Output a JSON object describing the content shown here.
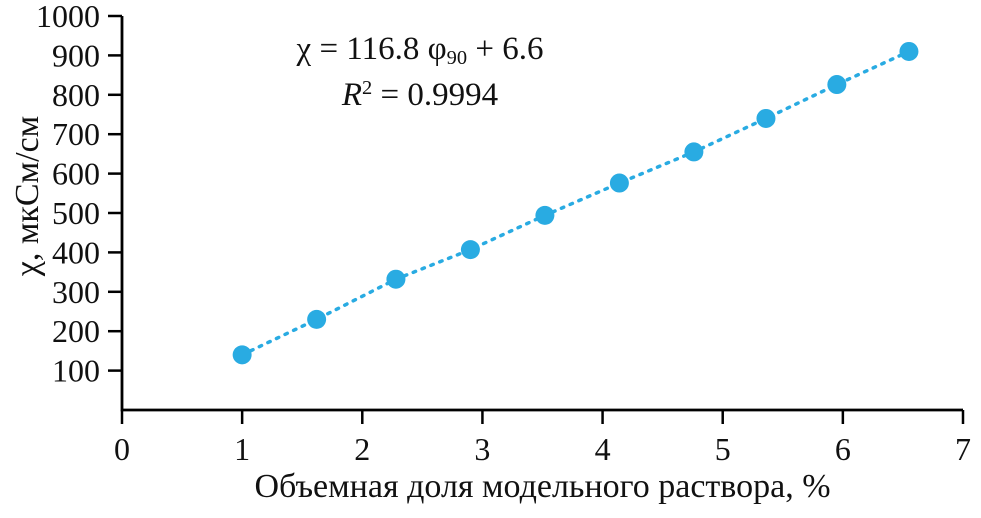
{
  "chart_data": {
    "type": "scatter",
    "title": "",
    "xlabel": "Объемная доля модельного раствора, %",
    "ylabel": "χ, мкСм/см",
    "xlim": [
      0,
      7
    ],
    "ylim": [
      0,
      1000
    ],
    "x_ticks": [
      0,
      1,
      2,
      3,
      4,
      5,
      6,
      7
    ],
    "y_ticks": [
      100,
      200,
      300,
      400,
      500,
      600,
      700,
      800,
      900,
      1000
    ],
    "grid": false,
    "legend": false,
    "line_style": "dotted",
    "marker_color": "#29abe2",
    "axis_color": "#000000",
    "series": [
      {
        "name": "conductivity-vs-volume-fraction",
        "x": [
          1.0,
          1.62,
          2.28,
          2.9,
          3.52,
          4.14,
          4.76,
          5.36,
          5.95,
          6.55
        ],
        "y": [
          140,
          230,
          332,
          407,
          494,
          576,
          655,
          740,
          826,
          910
        ]
      }
    ],
    "annotations": [
      "χ = 116.8 φ₉₀ + 6.6",
      "R² = 0.9994"
    ]
  },
  "annotation": {
    "equation": {
      "pre": "χ = 116.8 φ",
      "sub": "90",
      "post": " + 6.6"
    },
    "r_squared": {
      "pre": "R",
      "sup": "2",
      "post": " = 0.9994"
    }
  }
}
